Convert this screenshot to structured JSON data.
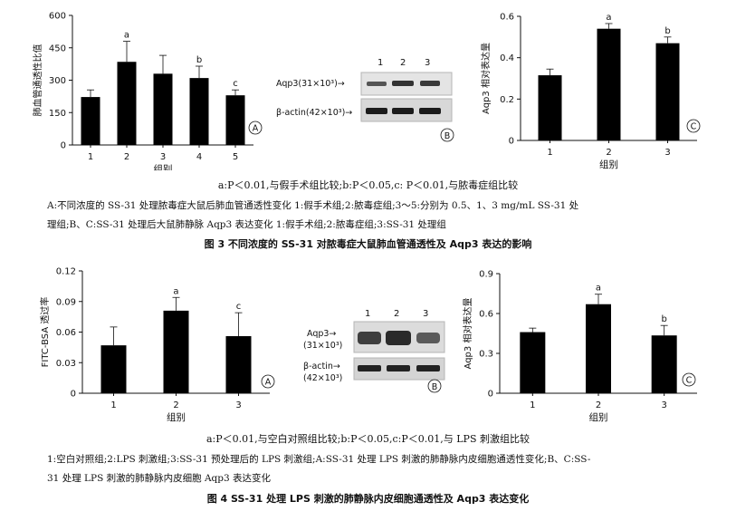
{
  "figure3": {
    "panel_a": {
      "ylabel": "肺血管通透性比值",
      "xlabel": "组别",
      "panel_label": "A",
      "yticks": [
        "0",
        "150",
        "300",
        "450",
        "600"
      ],
      "categories": [
        "1",
        "2",
        "3",
        "4",
        "5"
      ],
      "sig_labels": [
        "",
        "a",
        "",
        "b",
        "c"
      ]
    },
    "panel_b": {
      "panel_label": "B",
      "lanes": [
        "1",
        "2",
        "3"
      ],
      "bands": [
        "Aqp3(31×10³)→",
        "β-actin(42×10³)→"
      ]
    },
    "panel_c": {
      "ylabel": "Aqp3 相对表达量",
      "xlabel": "组别",
      "panel_label": "C",
      "yticks": [
        "0",
        "0.2",
        "0.4",
        "0.6"
      ],
      "categories": [
        "1",
        "2",
        "3"
      ],
      "sig_labels": [
        "",
        "a",
        "b"
      ]
    },
    "note": "a:P＜0.01,与假手术组比较;b:P＜0.05,c: P＜0.01,与脓毒症组比较",
    "legend_line1": "A:不同浓度的 SS-31 处理脓毒症大鼠后肺血管通透性变化  1:假手术组;2:脓毒症组;3～5:分别为 0.5、1、3 mg/mL SS-31 处",
    "legend_line2": "理组;B、C:SS-31 处理后大鼠肺静脉 Aqp3 表达变化  1:假手术组;2:脓毒症组;3:SS-31 处理组",
    "caption": "图 3   不同浓度的 SS-31 对脓毒症大鼠肺血管通透性及 Aqp3 表达的影响"
  },
  "figure4": {
    "panel_a": {
      "ylabel": "FITC-BSA 透过率",
      "xlabel": "组别",
      "panel_label": "A",
      "yticks": [
        "0",
        "0.03",
        "0.06",
        "0.09",
        "0.12"
      ],
      "categories": [
        "1",
        "2",
        "3"
      ],
      "sig_labels": [
        "",
        "a",
        "c"
      ]
    },
    "panel_b": {
      "panel_label": "B",
      "lanes": [
        "1",
        "2",
        "3"
      ],
      "bands": [
        "Aqp3→",
        "(31×10³)",
        "β-actin→",
        "(42×10³)"
      ]
    },
    "panel_c": {
      "ylabel": "Aqp3 相对表达量",
      "xlabel": "组别",
      "panel_label": "C",
      "yticks": [
        "0",
        "0.3",
        "0.6",
        "0.9"
      ],
      "categories": [
        "1",
        "2",
        "3"
      ],
      "sig_labels": [
        "",
        "a",
        "b"
      ]
    },
    "note": "a:P＜0.01,与空白对照组比较;b:P＜0.05,c:P＜0.01,与 LPS 刺激组比较",
    "legend_line1": "1:空白对照组;2:LPS 刺激组;3:SS-31 预处理后的 LPS 刺激组;A:SS-31 处理 LPS 刺激的肺静脉内皮细胞通透性变化;B、C:SS-",
    "legend_line2": "31 处理 LPS 刺激的肺静脉内皮细胞 Aqp3 表达变化",
    "caption": "图 4   SS-31 处理 LPS 刺激的肺静脉内皮细胞通透性及 Aqp3 表达变化"
  },
  "chart_data": [
    {
      "type": "bar",
      "ylabel": "肺血管通透性比值",
      "xlabel": "组别",
      "categories": [
        "1",
        "2",
        "3",
        "4",
        "5"
      ],
      "values": [
        222,
        385,
        330,
        310,
        230
      ],
      "errors": [
        33,
        95,
        85,
        55,
        25
      ],
      "ylim": [
        0,
        600
      ],
      "annotations": [
        "",
        "a",
        "",
        "b",
        "c"
      ],
      "grid": false
    },
    {
      "type": "bar",
      "ylabel": "Aqp3 相对表达量",
      "xlabel": "组别",
      "categories": [
        "1",
        "2",
        "3"
      ],
      "values": [
        0.315,
        0.54,
        0.47
      ],
      "errors": [
        0.03,
        0.025,
        0.03
      ],
      "ylim": [
        0,
        0.6
      ],
      "annotations": [
        "",
        "a",
        "b"
      ],
      "grid": false
    },
    {
      "type": "bar",
      "ylabel": "FITC-BSA 透过率",
      "xlabel": "组别",
      "categories": [
        "1",
        "2",
        "3"
      ],
      "values": [
        0.047,
        0.081,
        0.056
      ],
      "errors": [
        0.018,
        0.013,
        0.023
      ],
      "ylim": [
        0,
        0.12
      ],
      "annotations": [
        "",
        "a",
        "c"
      ],
      "grid": false
    },
    {
      "type": "bar",
      "ylabel": "Aqp3 相对表达量",
      "xlabel": "组别",
      "categories": [
        "1",
        "2",
        "3"
      ],
      "values": [
        0.46,
        0.67,
        0.435
      ],
      "errors": [
        0.03,
        0.075,
        0.075
      ],
      "ylim": [
        0,
        0.9
      ],
      "annotations": [
        "",
        "a",
        "b"
      ],
      "grid": false
    }
  ]
}
